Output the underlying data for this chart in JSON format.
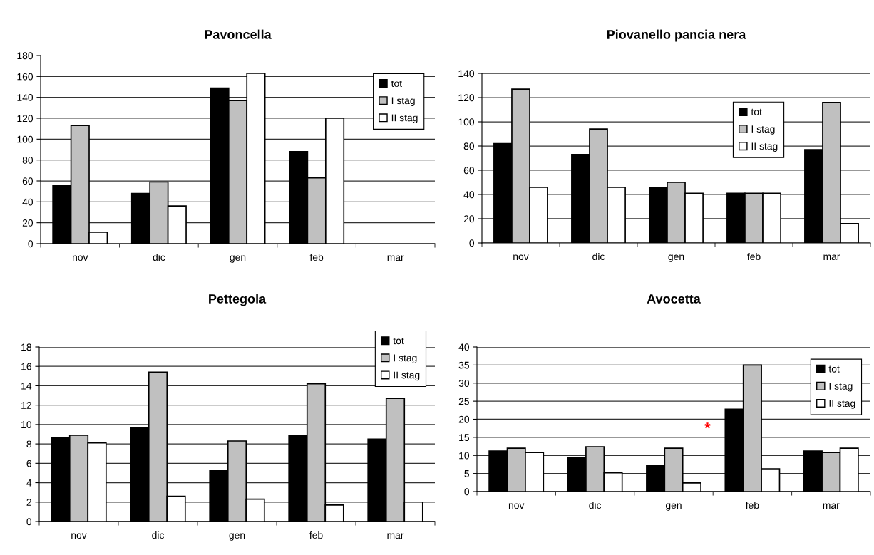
{
  "chart_data": [
    {
      "type": "bar",
      "title": "Pavoncella",
      "categories": [
        "nov",
        "dic",
        "gen",
        "feb",
        "mar"
      ],
      "ylim": [
        0,
        180
      ],
      "yticks": [
        0,
        20,
        40,
        60,
        80,
        100,
        120,
        140,
        160,
        180
      ],
      "grid": "y",
      "legend": "top right",
      "series": [
        {
          "name": "tot",
          "color": "#000000",
          "values": [
            56,
            48,
            149,
            88,
            null
          ]
        },
        {
          "name": "I stag",
          "color": "#c0c0c0",
          "values": [
            113,
            59,
            137,
            63,
            null
          ]
        },
        {
          "name": "II stag",
          "color": "#ffffff",
          "values": [
            11,
            36,
            163,
            120,
            null
          ]
        }
      ]
    },
    {
      "type": "bar",
      "title": "Piovanello pancia nera",
      "categories": [
        "nov",
        "dic",
        "gen",
        "feb",
        "mar"
      ],
      "ylim": [
        0,
        140
      ],
      "yticks": [
        0,
        20,
        40,
        60,
        80,
        100,
        120,
        140
      ],
      "grid": "y",
      "legend": "top right",
      "series": [
        {
          "name": "tot",
          "color": "#000000",
          "values": [
            82,
            73,
            46,
            41,
            77
          ]
        },
        {
          "name": "I stag",
          "color": "#c0c0c0",
          "values": [
            127,
            94,
            50,
            41,
            116
          ]
        },
        {
          "name": "II stag",
          "color": "#ffffff",
          "values": [
            46,
            46,
            41,
            41,
            16
          ]
        }
      ]
    },
    {
      "type": "bar",
      "title": "Pettegola",
      "categories": [
        "nov",
        "dic",
        "gen",
        "feb",
        "mar"
      ],
      "ylim": [
        0,
        18
      ],
      "yticks": [
        0,
        2,
        4,
        6,
        8,
        10,
        12,
        14,
        16,
        18
      ],
      "grid": "y",
      "legend": "top right",
      "series": [
        {
          "name": "tot",
          "color": "#000000",
          "values": [
            8.6,
            9.7,
            5.3,
            8.9,
            8.5
          ]
        },
        {
          "name": "I stag",
          "color": "#c0c0c0",
          "values": [
            8.9,
            15.4,
            8.3,
            14.2,
            12.7
          ]
        },
        {
          "name": "II stag",
          "color": "#ffffff",
          "values": [
            8.1,
            2.6,
            2.3,
            1.7,
            2.0
          ]
        }
      ]
    },
    {
      "type": "bar",
      "title": "Avocetta",
      "categories": [
        "nov",
        "dic",
        "gen",
        "feb",
        "mar"
      ],
      "ylim": [
        0,
        40
      ],
      "yticks": [
        0,
        5,
        10,
        15,
        20,
        25,
        30,
        35,
        40
      ],
      "grid": "y",
      "legend": "top right",
      "annotations": [
        "*"
      ],
      "series": [
        {
          "name": "tot",
          "color": "#000000",
          "values": [
            11.2,
            9.3,
            7.2,
            22.8,
            11.2
          ]
        },
        {
          "name": "I stag",
          "color": "#c0c0c0",
          "values": [
            12,
            12.4,
            12,
            35,
            10.8
          ]
        },
        {
          "name": "II stag",
          "color": "#ffffff",
          "values": [
            10.8,
            5.2,
            2.4,
            6.3,
            12
          ]
        }
      ]
    }
  ]
}
